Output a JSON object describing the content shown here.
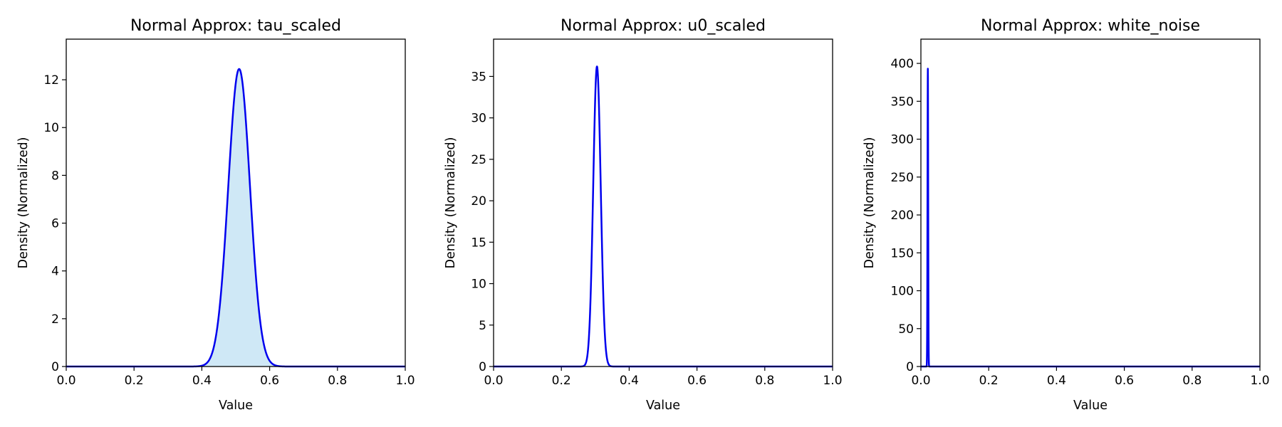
{
  "chart_data": [
    {
      "type": "area",
      "title": "Normal Approx: tau_scaled",
      "xlabel": "Value",
      "ylabel": "Density (Normalized)",
      "xlim": [
        0,
        1
      ],
      "ylim": [
        0,
        13.7
      ],
      "x_ticks": [
        "0.0",
        "0.2",
        "0.4",
        "0.6",
        "0.8",
        "1.0"
      ],
      "y_ticks": [
        "0",
        "2",
        "4",
        "6",
        "8",
        "10",
        "12"
      ],
      "y_tick_values": [
        0,
        2,
        4,
        6,
        8,
        10,
        12
      ],
      "distribution": {
        "mean": 0.51,
        "std": 0.032,
        "peak_density": 12.45
      },
      "fill": true,
      "line_color": "#0000ee",
      "fill_color": "#cfe8f6"
    },
    {
      "type": "line",
      "title": "Normal Approx: u0_scaled",
      "xlabel": "Value",
      "ylabel": "Density (Normalized)",
      "xlim": [
        0,
        1
      ],
      "ylim": [
        0,
        39.5
      ],
      "x_ticks": [
        "0.0",
        "0.2",
        "0.4",
        "0.6",
        "0.8",
        "1.0"
      ],
      "y_ticks": [
        "0",
        "5",
        "10",
        "15",
        "20",
        "25",
        "30",
        "35"
      ],
      "y_tick_values": [
        0,
        5,
        10,
        15,
        20,
        25,
        30,
        35
      ],
      "distribution": {
        "mean": 0.305,
        "std": 0.011,
        "peak_density": 36.2
      },
      "fill": false,
      "line_color": "#0000ee"
    },
    {
      "type": "line",
      "title": "Normal Approx: white_noise",
      "xlabel": "Value",
      "ylabel": "Density (Normalized)",
      "xlim": [
        0,
        1
      ],
      "ylim": [
        0,
        432
      ],
      "x_ticks": [
        "0.0",
        "0.2",
        "0.4",
        "0.6",
        "0.8",
        "1.0"
      ],
      "y_ticks": [
        "0",
        "50",
        "100",
        "150",
        "200",
        "250",
        "300",
        "350",
        "400"
      ],
      "y_tick_values": [
        0,
        50,
        100,
        150,
        200,
        250,
        300,
        350,
        400
      ],
      "distribution": {
        "mean": 0.0205,
        "std": 0.00102,
        "peak_density": 393
      },
      "fill": false,
      "line_color": "#0000ee"
    }
  ]
}
